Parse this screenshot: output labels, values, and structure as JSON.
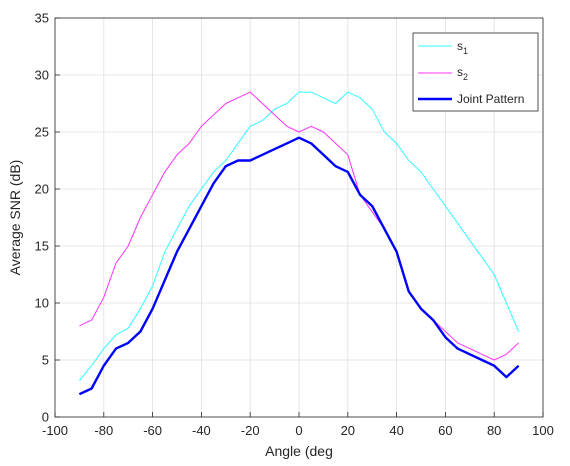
{
  "chart_data": {
    "type": "line",
    "xlabel": "Angle (deg",
    "ylabel": "Average SNR (dB)",
    "xlim": [
      -100,
      100
    ],
    "ylim": [
      0,
      35
    ],
    "xticks": [
      -100,
      -80,
      -60,
      -40,
      -20,
      0,
      20,
      40,
      60,
      80,
      100
    ],
    "yticks": [
      0,
      5,
      10,
      15,
      20,
      25,
      30,
      35
    ],
    "grid": true,
    "legend_position": "top-right",
    "legend": [
      {
        "base": "s",
        "sub": "1",
        "label": "",
        "color": "#33ffff"
      },
      {
        "base": "s",
        "sub": "2",
        "label": "",
        "color": "#ff33ff"
      },
      {
        "base": "",
        "sub": "",
        "label": "Joint Pattern",
        "color": "#0000ff"
      }
    ],
    "x": [
      -90,
      -85,
      -80,
      -75,
      -70,
      -65,
      -60,
      -55,
      -50,
      -45,
      -40,
      -35,
      -30,
      -25,
      -20,
      -15,
      -10,
      -5,
      0,
      5,
      10,
      15,
      20,
      25,
      30,
      35,
      40,
      45,
      50,
      55,
      60,
      65,
      70,
      75,
      80,
      85,
      90
    ],
    "series": [
      {
        "name": "s1",
        "color": "#33ffff",
        "width": 1,
        "values": [
          3.2,
          4.5,
          6.0,
          7.2,
          7.8,
          9.5,
          11.5,
          14.5,
          16.5,
          18.5,
          20.0,
          21.5,
          22.5,
          24.0,
          25.5,
          26.0,
          27.0,
          27.5,
          28.5,
          28.5,
          28.0,
          27.5,
          28.5,
          28.0,
          27.0,
          25.0,
          24.0,
          22.5,
          21.5,
          20.0,
          18.5,
          17.0,
          15.5,
          14.0,
          12.5,
          10.0,
          7.5
        ]
      },
      {
        "name": "s2",
        "color": "#ff33ff",
        "width": 1,
        "values": [
          8.0,
          8.5,
          10.5,
          13.5,
          15.0,
          17.5,
          19.5,
          21.5,
          23.0,
          24.0,
          25.5,
          26.5,
          27.5,
          28.0,
          28.5,
          27.5,
          26.5,
          25.5,
          25.0,
          25.5,
          25.0,
          24.0,
          23.0,
          19.5,
          18.0,
          16.5,
          14.5,
          11.0,
          9.5,
          8.5,
          7.5,
          6.5,
          6.0,
          5.5,
          5.0,
          5.5,
          6.5
        ]
      },
      {
        "name": "Joint Pattern",
        "color": "#0000ff",
        "width": 2.4,
        "values": [
          2.0,
          2.5,
          4.5,
          6.0,
          6.5,
          7.5,
          9.5,
          12.0,
          14.5,
          16.5,
          18.5,
          20.5,
          22.0,
          22.5,
          22.5,
          23.0,
          23.5,
          24.0,
          24.5,
          24.0,
          23.0,
          22.0,
          21.5,
          19.5,
          18.5,
          16.5,
          14.5,
          11.0,
          9.5,
          8.5,
          7.0,
          6.0,
          5.5,
          5.0,
          4.5,
          3.5,
          4.5
        ]
      }
    ]
  }
}
